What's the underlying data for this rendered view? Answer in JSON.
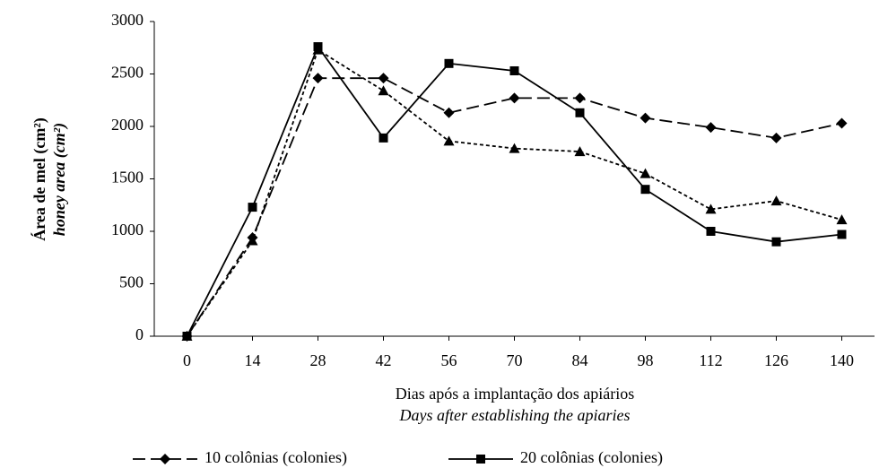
{
  "chart_data": {
    "type": "line",
    "ylabel": "Área de mel (cm²)",
    "ylabel_en": "honey area (cm²)",
    "xlabel": "Dias após a implantação dos apiários",
    "xlabel_en": "Days after establishing the apiaries",
    "x": [
      0,
      14,
      28,
      42,
      56,
      70,
      84,
      98,
      112,
      126,
      140
    ],
    "xlim": [
      -7,
      147
    ],
    "xticks": [
      0,
      14,
      28,
      42,
      56,
      70,
      84,
      98,
      112,
      126,
      140
    ],
    "ylim": [
      0,
      3000
    ],
    "yticks": [
      0,
      500,
      1000,
      1500,
      2000,
      2500,
      3000
    ],
    "grid": false,
    "series": [
      {
        "name": "10 colônias (colonies)",
        "color": "#000000",
        "dash": "long",
        "marker": "diamond",
        "values": [
          0,
          940,
          2460,
          2460,
          2130,
          2270,
          2270,
          2080,
          1990,
          1890,
          2030
        ]
      },
      {
        "color": "#000000",
        "dash": "short",
        "marker": "triangle",
        "values": [
          0,
          910,
          2730,
          2340,
          1860,
          1790,
          1760,
          1550,
          1210,
          1290,
          1110
        ]
      },
      {
        "name": "20 colônias (colonies)",
        "color": "#000000",
        "dash": "solid",
        "marker": "square",
        "values": [
          0,
          1230,
          2760,
          1890,
          2600,
          2530,
          2130,
          1400,
          1000,
          900,
          970
        ]
      }
    ]
  }
}
